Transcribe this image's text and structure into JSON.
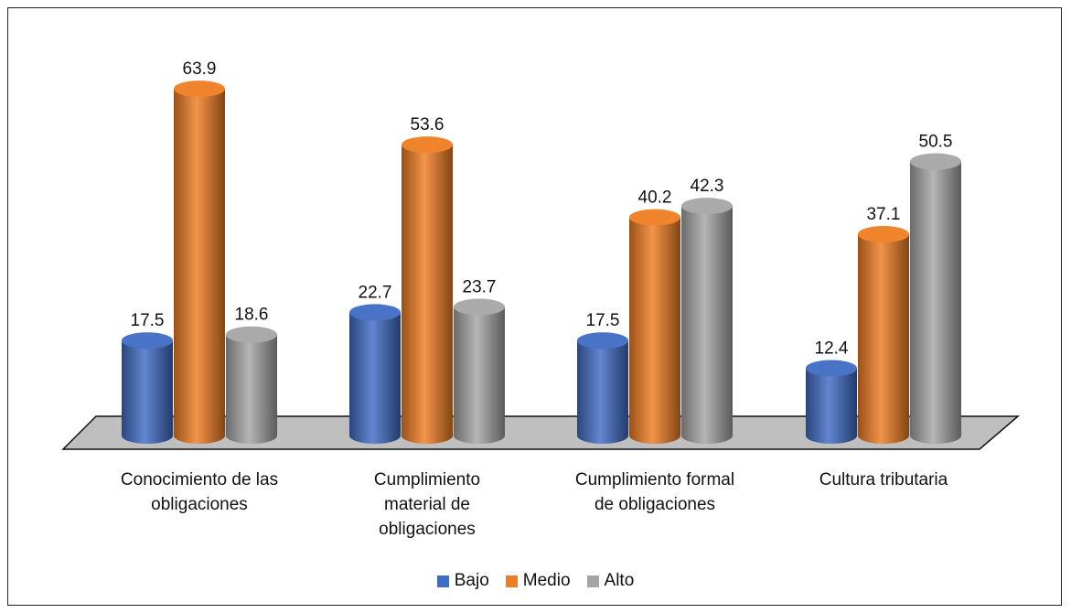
{
  "chart_data": {
    "type": "bar",
    "categories": [
      [
        "Conocimiento de las",
        "obligaciones"
      ],
      [
        "Cumplimiento",
        "material de",
        "obligaciones"
      ],
      [
        "Cumplimiento formal",
        "de obligaciones"
      ],
      [
        "Cultura tributaria"
      ]
    ],
    "series": [
      {
        "name": "Bajo",
        "color": "#3f6cc4",
        "values": [
          17.5,
          22.7,
          17.5,
          12.4
        ]
      },
      {
        "name": "Medio",
        "color": "#ef7d22",
        "values": [
          63.9,
          53.6,
          40.2,
          37.1
        ]
      },
      {
        "name": "Alto",
        "color": "#a5a5a5",
        "values": [
          18.6,
          23.7,
          42.3,
          50.5
        ]
      }
    ],
    "style": "3d-cylinder",
    "floor_color": "#bfbfbf",
    "legend_position": "bottom"
  }
}
